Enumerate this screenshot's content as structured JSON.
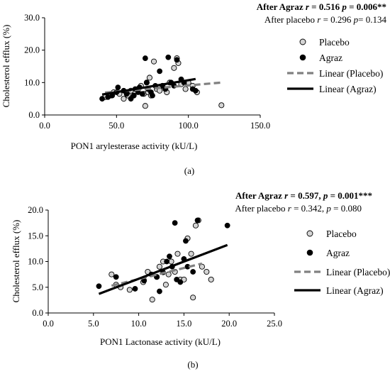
{
  "chart_data": [
    {
      "type": "scatter",
      "panel_label": "(a)",
      "stats": {
        "line1": {
          "prefix": "After Agraz ",
          "r_label": "r",
          "r_value": " = 0.516 ",
          "p_label": "p",
          "p_value": " = 0.006**"
        },
        "line2": {
          "prefix": "After placebo ",
          "r_label": "r",
          "r_value": " = 0.296 ",
          "p_label": "p",
          "p_value": "= 0.134"
        }
      },
      "xlabel": "PON1 arylesterase activity  (kU/L)",
      "ylabel": "Cholesterol efflux (%)",
      "xlim": [
        0,
        150
      ],
      "ylim": [
        0,
        30
      ],
      "xticks": [
        "0.0",
        "50.0",
        "100.0",
        "150.0"
      ],
      "yticks": [
        "0.0",
        "10.0",
        "20.0",
        "30.0"
      ],
      "grid": false,
      "legend": {
        "placement": "right",
        "entries": [
          "Placebo",
          "Agraz",
          "Linear (Placebo)",
          "Linear (Agraz)"
        ]
      },
      "series": [
        {
          "name": "Placebo",
          "marker": "open-circle",
          "color": "#d4d4d4",
          "points": [
            [
              42,
              5.5
            ],
            [
              46,
              6
            ],
            [
              48,
              7
            ],
            [
              52,
              6.5
            ],
            [
              55,
              5
            ],
            [
              58,
              6
            ],
            [
              60,
              7.5
            ],
            [
              62,
              6
            ],
            [
              65,
              8
            ],
            [
              67,
              9
            ],
            [
              69,
              6.5
            ],
            [
              70,
              2.8
            ],
            [
              71,
              10
            ],
            [
              72,
              7
            ],
            [
              73,
              11.5
            ],
            [
              74,
              6
            ],
            [
              76,
              16.5
            ],
            [
              78,
              8
            ],
            [
              80,
              7.5
            ],
            [
              82,
              9
            ],
            [
              84,
              8
            ],
            [
              85,
              7
            ],
            [
              87,
              10
            ],
            [
              90,
              14.5
            ],
            [
              92,
              17.5
            ],
            [
              93,
              16
            ],
            [
              95,
              9.5
            ],
            [
              98,
              8
            ],
            [
              100,
              10
            ],
            [
              103,
              9
            ],
            [
              106,
              7
            ],
            [
              123,
              3
            ]
          ]
        },
        {
          "name": "Agraz",
          "marker": "filled-circle",
          "color": "#000000",
          "points": [
            [
              40,
              5
            ],
            [
              44,
              5.5
            ],
            [
              47,
              6
            ],
            [
              50,
              7
            ],
            [
              51,
              8.5
            ],
            [
              55,
              7.5
            ],
            [
              57,
              6.5
            ],
            [
              60,
              5
            ],
            [
              62,
              6
            ],
            [
              63,
              8
            ],
            [
              65,
              7
            ],
            [
              66,
              8.5
            ],
            [
              68,
              6.5
            ],
            [
              70,
              17.5
            ],
            [
              71,
              10
            ],
            [
              72,
              8
            ],
            [
              74,
              7
            ],
            [
              75,
              6
            ],
            [
              77,
              9
            ],
            [
              80,
              13.5
            ],
            [
              82,
              9
            ],
            [
              84,
              8
            ],
            [
              86,
              17.8
            ],
            [
              88,
              10
            ],
            [
              90,
              9
            ],
            [
              92,
              17
            ],
            [
              95,
              11
            ],
            [
              97,
              10
            ],
            [
              103,
              8
            ],
            [
              105,
              7.5
            ]
          ]
        },
        {
          "name": "Linear (Placebo)",
          "type": "line",
          "style": "dashed",
          "color": "#808080",
          "x": [
            42,
            123
          ],
          "y": [
            6.9,
            10.0
          ]
        },
        {
          "name": "Linear (Agraz)",
          "type": "line",
          "style": "solid",
          "color": "#000000",
          "x": [
            40,
            105
          ],
          "y": [
            6.3,
            11.1
          ]
        }
      ]
    },
    {
      "type": "scatter",
      "panel_label": "(b)",
      "stats": {
        "line1": {
          "prefix": "After Agraz ",
          "r_label": "r",
          "r_value": " = 0.597",
          "p_label": "p",
          "p_value": " = 0.001***",
          "separator": ", "
        },
        "line2": {
          "prefix": "After placebo ",
          "r_label": "r",
          "r_value": " = 0.342",
          "p_label": "p",
          "p_value": " = 0.080",
          "separator": ", "
        }
      },
      "xlabel": "PON1 Lactonase activity  (kU/L)",
      "ylabel": "Cholesterol efflux (%)",
      "xlim": [
        0,
        25
      ],
      "ylim": [
        0,
        20
      ],
      "xticks": [
        "0.0",
        "5.0",
        "10.0",
        "15.0",
        "20.0",
        "25.0"
      ],
      "yticks": [
        "0.0",
        "5.0",
        "10.0",
        "15.0",
        "20.0"
      ],
      "grid": false,
      "legend": {
        "placement": "right",
        "entries": [
          "Placebo",
          "Agraz",
          "Linear (Placebo)",
          "Linear (Agraz)"
        ]
      },
      "series": [
        {
          "name": "Placebo",
          "marker": "open-circle",
          "color": "#d4d4d4",
          "points": [
            [
              7,
              7.5
            ],
            [
              7.5,
              5.5
            ],
            [
              8,
              5
            ],
            [
              9,
              4.5
            ],
            [
              10.5,
              6
            ],
            [
              11,
              8
            ],
            [
              11.5,
              2.6
            ],
            [
              12,
              7
            ],
            [
              12.3,
              9
            ],
            [
              12.7,
              10
            ],
            [
              13,
              5.5
            ],
            [
              13.3,
              7.5
            ],
            [
              13.6,
              10
            ],
            [
              14,
              8
            ],
            [
              14.3,
              11.5
            ],
            [
              14.6,
              6.5
            ],
            [
              15,
              6.5
            ],
            [
              15.4,
              14.5
            ],
            [
              15.8,
              11.5
            ],
            [
              16,
              3
            ],
            [
              16.3,
              17
            ],
            [
              16.6,
              18
            ],
            [
              17,
              9
            ],
            [
              17.5,
              8
            ],
            [
              18,
              6.5
            ]
          ]
        },
        {
          "name": "Agraz",
          "marker": "filled-circle",
          "color": "#000000",
          "points": [
            [
              5.6,
              5.2
            ],
            [
              7.5,
              7
            ],
            [
              9.6,
              4.7
            ],
            [
              10.6,
              6.3
            ],
            [
              11.4,
              7.5
            ],
            [
              12,
              7
            ],
            [
              12.3,
              4.2
            ],
            [
              12.7,
              7.9
            ],
            [
              13.1,
              10
            ],
            [
              13.4,
              11
            ],
            [
              13.7,
              9
            ],
            [
              14,
              17.5
            ],
            [
              14.2,
              6.5
            ],
            [
              14.6,
              6
            ],
            [
              15,
              10.5
            ],
            [
              15.2,
              14
            ],
            [
              15.4,
              9
            ],
            [
              16,
              8
            ],
            [
              16.5,
              18
            ],
            [
              19.8,
              17
            ]
          ]
        },
        {
          "name": "Linear (Placebo)",
          "type": "line",
          "style": "dashed",
          "color": "#808080",
          "x": [
            7,
            17
          ],
          "y": [
            5.3,
            9.6
          ]
        },
        {
          "name": "Linear (Agraz)",
          "type": "line",
          "style": "solid",
          "color": "#000000",
          "x": [
            5.6,
            19.8
          ],
          "y": [
            3.7,
            13.2
          ]
        }
      ]
    }
  ]
}
